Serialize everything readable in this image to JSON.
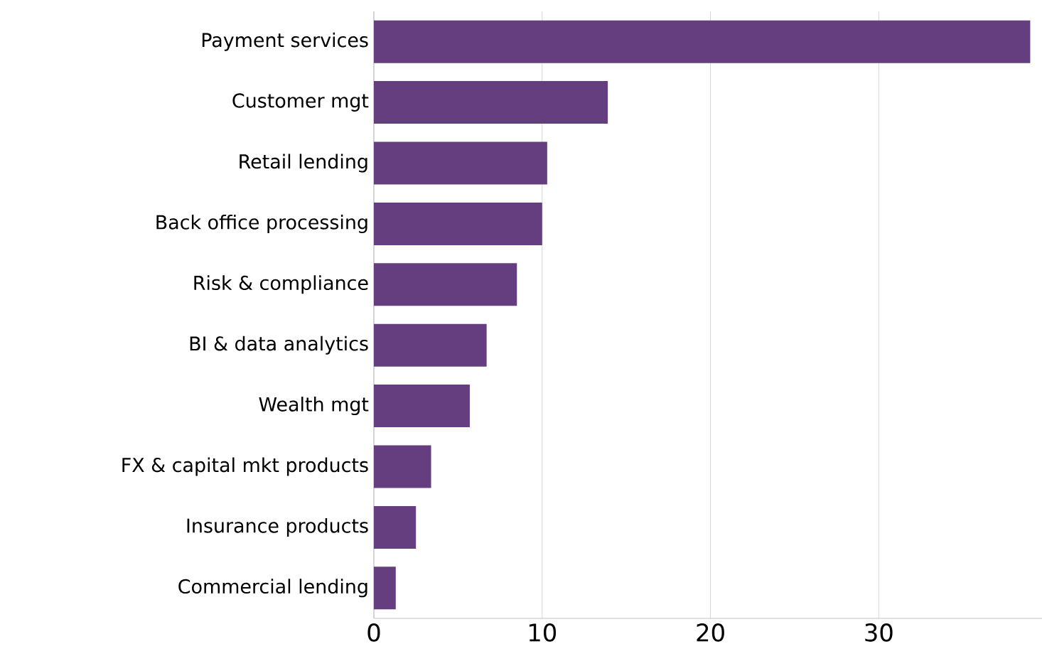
{
  "chart_data": {
    "type": "bar",
    "orientation": "horizontal",
    "categories": [
      "Payment services",
      "Customer mgt",
      "Retail lending",
      "Back office processing",
      "Risk & compliance",
      "BI & data analytics",
      "Wealth mgt",
      "FX & capital mkt products",
      "Insurance products",
      "Commercial lending"
    ],
    "values": [
      39.0,
      13.9,
      10.3,
      10.0,
      8.5,
      6.7,
      5.7,
      3.4,
      2.5,
      1.3
    ],
    "color": "#653e80",
    "xlim": [
      0,
      39.7
    ],
    "xticks": [
      0,
      10,
      20,
      30
    ],
    "grid": "x"
  }
}
